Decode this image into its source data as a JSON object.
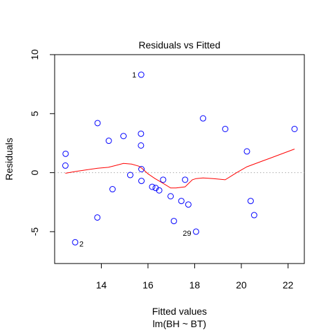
{
  "chart_data": {
    "type": "scatter",
    "title": "Residuals vs Fitted",
    "xlabel": "Fitted values",
    "sublabel": "lm(BH ~ BT)",
    "ylabel": "Residuals",
    "xlim": [
      12.0,
      22.7
    ],
    "ylim": [
      -7.7,
      10.0
    ],
    "x_ticks": [
      14,
      16,
      18,
      20,
      22
    ],
    "y_ticks": [
      -5,
      0,
      5,
      10
    ],
    "x_tick_labels": [
      "14",
      "16",
      "18",
      "20",
      "22"
    ],
    "y_tick_labels": [
      "-5",
      "0",
      "5",
      "10"
    ],
    "grid": false,
    "reference_line": 0,
    "colors": {
      "points": "#0000ff",
      "smooth": "#ff0000",
      "refline": "#aaaaaa",
      "axes": "#000000"
    },
    "points": [
      {
        "x": 15.71,
        "y": 8.3,
        "label": "1"
      },
      {
        "x": 12.88,
        "y": -5.9,
        "label": "2"
      },
      {
        "x": 18.06,
        "y": -5.0,
        "label": "29"
      },
      {
        "x": 12.47,
        "y": 1.6
      },
      {
        "x": 12.46,
        "y": 0.6
      },
      {
        "x": 13.84,
        "y": 4.2
      },
      {
        "x": 13.83,
        "y": -3.8
      },
      {
        "x": 14.32,
        "y": 2.7
      },
      {
        "x": 14.48,
        "y": -1.4
      },
      {
        "x": 14.95,
        "y": 3.1
      },
      {
        "x": 15.24,
        "y": -0.2
      },
      {
        "x": 15.7,
        "y": 3.3
      },
      {
        "x": 15.7,
        "y": 2.3
      },
      {
        "x": 15.72,
        "y": 0.3
      },
      {
        "x": 15.72,
        "y": -0.7
      },
      {
        "x": 16.18,
        "y": -1.2
      },
      {
        "x": 16.33,
        "y": -1.3
      },
      {
        "x": 16.48,
        "y": -1.5
      },
      {
        "x": 16.65,
        "y": -0.6
      },
      {
        "x": 16.97,
        "y": -2.0
      },
      {
        "x": 17.11,
        "y": -4.1
      },
      {
        "x": 17.43,
        "y": -2.4
      },
      {
        "x": 17.59,
        "y": -0.6
      },
      {
        "x": 17.73,
        "y": -2.7
      },
      {
        "x": 18.36,
        "y": 4.6
      },
      {
        "x": 19.31,
        "y": 3.7
      },
      {
        "x": 20.24,
        "y": 1.8
      },
      {
        "x": 20.4,
        "y": -2.4
      },
      {
        "x": 20.55,
        "y": -3.6
      },
      {
        "x": 22.28,
        "y": 3.7
      }
    ],
    "smooth": [
      [
        12.46,
        -0.05
      ],
      [
        12.9,
        0.1
      ],
      [
        13.4,
        0.25
      ],
      [
        13.84,
        0.37
      ],
      [
        14.3,
        0.45
      ],
      [
        14.6,
        0.6
      ],
      [
        14.95,
        0.78
      ],
      [
        15.3,
        0.72
      ],
      [
        15.6,
        0.55
      ],
      [
        15.72,
        0.4
      ],
      [
        16.0,
        -0.1
      ],
      [
        16.3,
        -0.5
      ],
      [
        16.6,
        -0.85
      ],
      [
        16.97,
        -1.3
      ],
      [
        17.2,
        -1.3
      ],
      [
        17.59,
        -1.2
      ],
      [
        17.9,
        -0.6
      ],
      [
        18.06,
        -0.5
      ],
      [
        18.36,
        -0.45
      ],
      [
        18.8,
        -0.5
      ],
      [
        19.31,
        -0.6
      ],
      [
        19.8,
        0.0
      ],
      [
        20.24,
        0.5
      ],
      [
        21.2,
        1.2
      ],
      [
        22.28,
        2.0
      ]
    ]
  }
}
